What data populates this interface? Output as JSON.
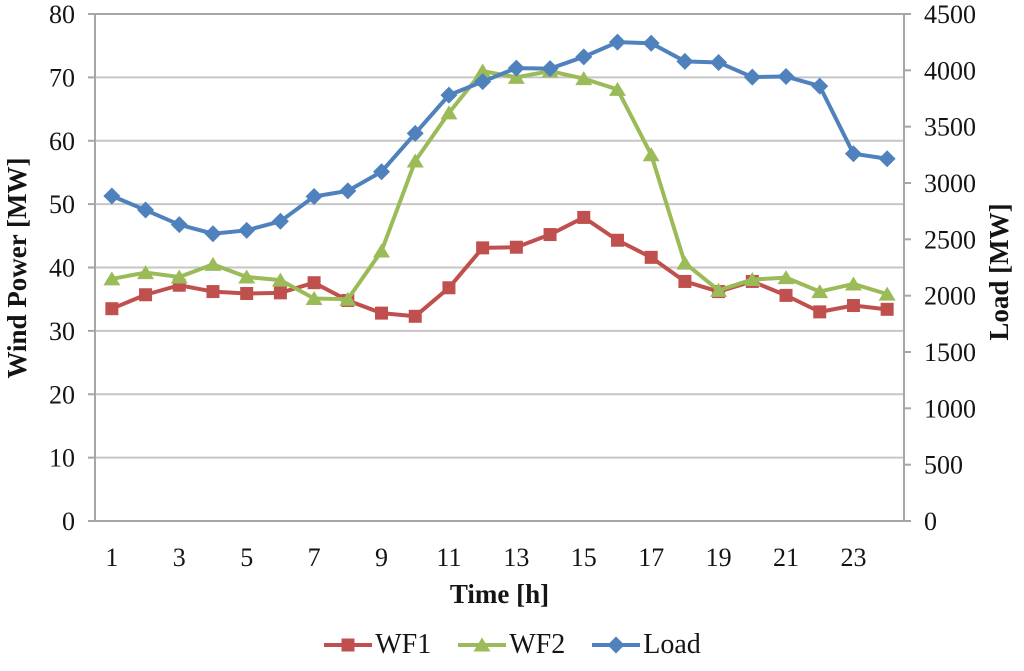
{
  "figure": {
    "kind": "dual-axis line chart (spreadsheet style)",
    "background": "#ffffff"
  },
  "chart_data": {
    "type": "line",
    "title": "",
    "xlabel": "Time [h]",
    "ylabel_left": "Wind Power [MW]",
    "ylabel_right": "Load [MW]",
    "grid": true,
    "legend_position": "bottom",
    "x": [
      1,
      2,
      3,
      4,
      5,
      6,
      7,
      8,
      9,
      10,
      11,
      12,
      13,
      14,
      15,
      16,
      17,
      18,
      19,
      20,
      21,
      22,
      23,
      24
    ],
    "x_tick_labels": [
      "1",
      "3",
      "5",
      "7",
      "9",
      "11",
      "13",
      "15",
      "17",
      "19",
      "21",
      "23"
    ],
    "left_axis": {
      "min": 0,
      "max": 80,
      "step": 10,
      "tick_labels": [
        "0",
        "10",
        "20",
        "30",
        "40",
        "50",
        "60",
        "70",
        "80"
      ]
    },
    "right_axis": {
      "min": 0,
      "max": 4500,
      "step": 500,
      "tick_labels": [
        "0",
        "500",
        "1000",
        "1500",
        "2000",
        "2500",
        "3000",
        "3500",
        "4000",
        "4500"
      ]
    },
    "series": [
      {
        "name": "WF1",
        "axis": "left",
        "color": "#C0504D",
        "marker": "square",
        "values": [
          33.5,
          35.7,
          37.2,
          36.2,
          35.9,
          36.0,
          37.6,
          34.8,
          32.8,
          32.3,
          36.8,
          43.1,
          43.2,
          45.2,
          47.9,
          44.3,
          41.6,
          37.8,
          36.2,
          37.8,
          35.6,
          33.0,
          34.0,
          33.4
        ]
      },
      {
        "name": "WF2",
        "axis": "left",
        "color": "#9BBB59",
        "marker": "triangle",
        "values": [
          38.2,
          39.2,
          38.5,
          40.5,
          38.5,
          38.0,
          35.1,
          35.0,
          42.6,
          56.8,
          64.4,
          71.0,
          70.0,
          71.0,
          69.8,
          68.1,
          57.8,
          40.7,
          36.4,
          38.1,
          38.4,
          36.2,
          37.4,
          35.8
        ]
      },
      {
        "name": "Load",
        "axis": "right",
        "color": "#4F81BD",
        "marker": "diamond",
        "values": [
          2885,
          2760,
          2630,
          2550,
          2580,
          2660,
          2880,
          2930,
          3100,
          3440,
          3780,
          3900,
          4020,
          4015,
          4120,
          4250,
          4240,
          4080,
          4070,
          3940,
          3945,
          3860,
          3260,
          3215
        ]
      }
    ],
    "colors": {
      "gridline": "#c6c6c6",
      "plot_border": "#a6a6a6",
      "text": "#141414"
    },
    "legend": [
      "WF1",
      "WF2",
      "Load"
    ]
  }
}
